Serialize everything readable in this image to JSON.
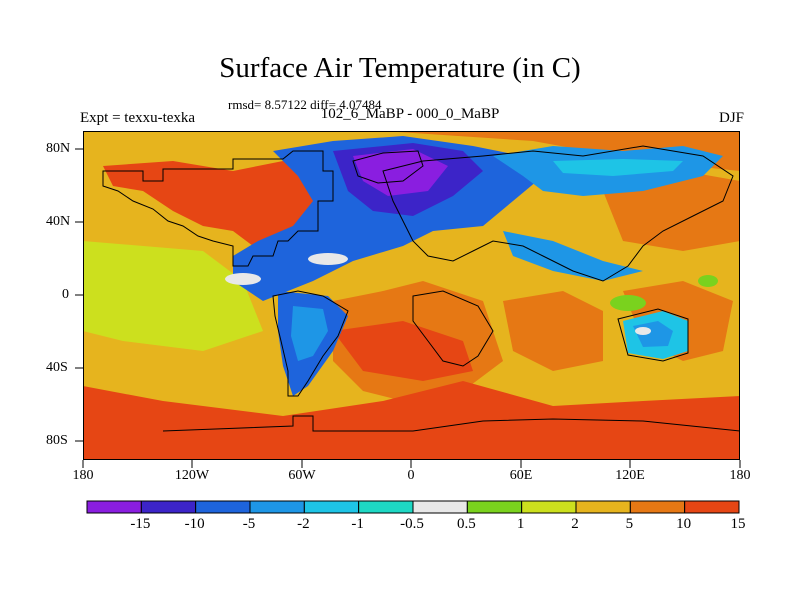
{
  "title": "Surface Air Temperature (in C)",
  "stats_line": "rmsd= 8.57122 diff= 4.07484",
  "experiment": "Expt = texxu-texka",
  "subtitle": "102_6_MaBP - 000_0_MaBP",
  "season": "DJF",
  "lat_labels": [
    "80N",
    "40N",
    "0",
    "40S",
    "80S"
  ],
  "lon_labels": [
    "180",
    "120W",
    "60W",
    "0",
    "60E",
    "120E",
    "180"
  ],
  "colorbar": {
    "colors": [
      "#8a1ee0",
      "#3c24c8",
      "#1e64dc",
      "#1e96e6",
      "#1ec4e6",
      "#1ed8c4",
      "#e8e8e8",
      "#7ad21e",
      "#cce01e",
      "#e6b41e",
      "#e67814",
      "#e64614"
    ],
    "labels": [
      "-15",
      "-10",
      "-5",
      "-2",
      "-1",
      "-0.5",
      "0.5",
      "1",
      "2",
      "5",
      "10",
      "15"
    ]
  }
}
